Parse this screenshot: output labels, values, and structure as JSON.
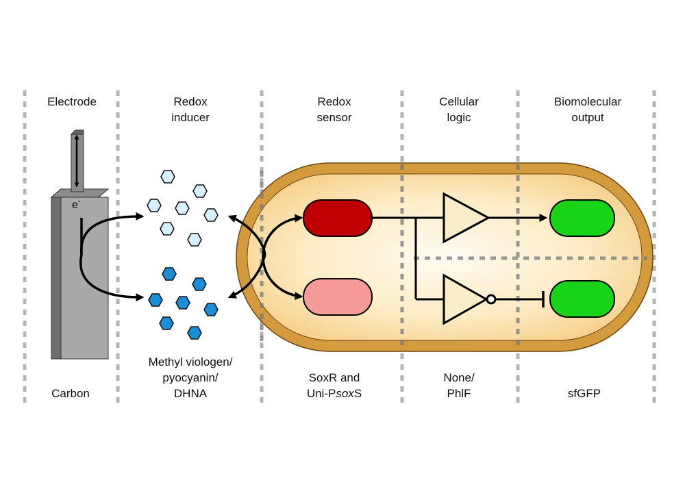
{
  "header_labels": {
    "electrode": [
      "Electrode"
    ],
    "redox_inducer": [
      "Redox",
      "inducer"
    ],
    "redox_sensor": [
      "Redox",
      "sensor"
    ],
    "cellular_logic": [
      "Cellular",
      "logic"
    ],
    "biomolecular_output": [
      "Biomolecular",
      "output"
    ]
  },
  "footer_labels": {
    "electrode": [
      "Carbon"
    ],
    "redox_inducer": [
      "Methyl viologen/",
      "pyocyanin/",
      "DHNA"
    ],
    "redox_sensor": [
      "SoxR and"
    ],
    "redox_sensor_line2": {
      "prefix": "Uni-P",
      "italic": "sox",
      "suffix": "S"
    },
    "cellular_logic": [
      "None/",
      "PhlF"
    ],
    "biomolecular_output": [
      "sfGFP"
    ]
  },
  "electron_label": {
    "base": "e",
    "sup": "-"
  },
  "colors": {
    "divider": "#b5b5b5",
    "cell_membrane": "#d49a3e",
    "cell_interior": "#fbe0a8",
    "electrode_face": "#a9a9a9",
    "electrode_side": "#6e6e6e",
    "oxidized_molecule": "#d6f1fb",
    "reduced_molecule": "#1a8fd8",
    "active_sensor": "#bf0000",
    "inactive_sensor": "#f79a9a",
    "gfp": "#19d31a"
  }
}
